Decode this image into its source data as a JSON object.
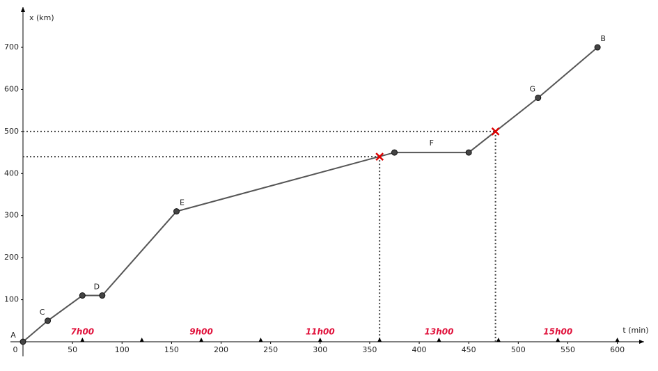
{
  "chart_data": {
    "type": "line",
    "x_label": "t (min)",
    "y_label": "x (km)",
    "xlim": [
      0,
      627
    ],
    "ylim": [
      0,
      796
    ],
    "xticks": [
      0,
      50,
      100,
      150,
      200,
      250,
      300,
      350,
      400,
      450,
      500,
      550,
      600
    ],
    "yticks": [
      100,
      200,
      300,
      400,
      500,
      600,
      700
    ],
    "series": [
      {
        "color": "#555555",
        "x": [
          0,
          25,
          60,
          80,
          155,
          375,
          450,
          520,
          580
        ],
        "values": [
          0,
          50,
          110,
          110,
          310,
          450,
          450,
          580,
          700
        ],
        "point_labels": [
          "A",
          "C",
          null,
          "D",
          "E",
          null,
          null,
          "G",
          "B"
        ]
      }
    ],
    "segment_labels": [
      {
        "text": "F",
        "segment": 5
      }
    ],
    "crosses": {
      "color": "#dd0000",
      "x": [
        360,
        477
      ],
      "values": [
        440,
        500
      ]
    },
    "markers": [
      60,
      120,
      180,
      240,
      300,
      360,
      420,
      480,
      540,
      600
    ],
    "annotation_color": "#e0103a",
    "annotations": [
      {
        "text": "7h00",
        "x": 60
      },
      {
        "text": "9h00",
        "x": 180
      },
      {
        "text": "11h00",
        "x": 300
      },
      {
        "text": "13h00",
        "x": 420
      },
      {
        "text": "15h00",
        "x": 540
      }
    ]
  }
}
